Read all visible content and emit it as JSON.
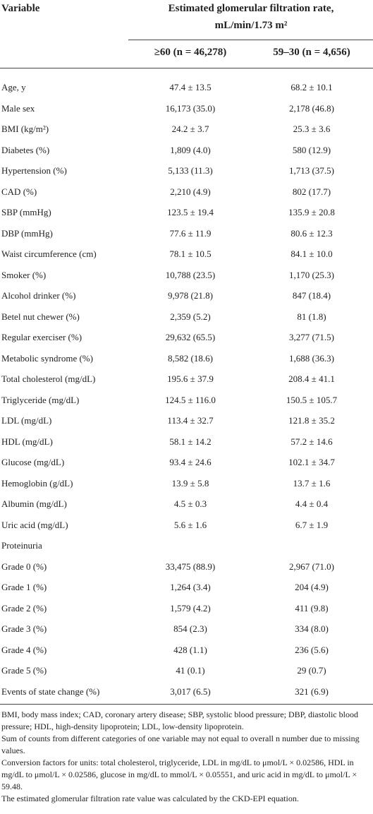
{
  "table": {
    "header": {
      "variable": "Variable",
      "group": [
        "Estimated glomerular filtration rate,",
        "mL/min/1.73 m²"
      ],
      "columns": [
        "≥60 (n = 46,278)",
        "59–30 (n = 4,656)"
      ]
    },
    "rows": [
      {
        "label": "Age, y",
        "values": [
          "47.4 ± 13.5",
          "68.2 ± 10.1"
        ]
      },
      {
        "label": "Male sex",
        "values": [
          "16,173 (35.0)",
          "2,178 (46.8)"
        ]
      },
      {
        "label": "BMI (kg/m²)",
        "values": [
          "24.2 ± 3.7",
          "25.3 ± 3.6"
        ]
      },
      {
        "label": "Diabetes (%)",
        "values": [
          "1,809 (4.0)",
          "580 (12.9)"
        ]
      },
      {
        "label": "Hypertension (%)",
        "values": [
          "5,133 (11.3)",
          "1,713 (37.5)"
        ]
      },
      {
        "label": "CAD (%)",
        "values": [
          "2,210 (4.9)",
          "802 (17.7)"
        ]
      },
      {
        "label": "SBP (mmHg)",
        "values": [
          "123.5 ± 19.4",
          "135.9 ± 20.8"
        ]
      },
      {
        "label": "DBP (mmHg)",
        "values": [
          "77.6 ± 11.9",
          "80.6 ± 12.3"
        ]
      },
      {
        "label": "Waist circumference (cm)",
        "values": [
          "78.1 ± 10.5",
          "84.1 ± 10.0"
        ]
      },
      {
        "label": "Smoker (%)",
        "values": [
          "10,788 (23.5)",
          "1,170 (25.3)"
        ]
      },
      {
        "label": "Alcohol drinker (%)",
        "values": [
          "9,978 (21.8)",
          "847 (18.4)"
        ]
      },
      {
        "label": "Betel nut chewer (%)",
        "values": [
          "2,359 (5.2)",
          "81 (1.8)"
        ]
      },
      {
        "label": "Regular exerciser (%)",
        "values": [
          "29,632 (65.5)",
          "3,277 (71.5)"
        ]
      },
      {
        "label": "Metabolic syndrome (%)",
        "values": [
          "8,582 (18.6)",
          "1,688 (36.3)"
        ]
      },
      {
        "label": "Total cholesterol (mg/dL)",
        "values": [
          "195.6 ± 37.9",
          "208.4 ± 41.1"
        ]
      },
      {
        "label": "Triglyceride (mg/dL)",
        "values": [
          "124.5 ± 116.0",
          "150.5 ± 105.7"
        ]
      },
      {
        "label": "LDL (mg/dL)",
        "values": [
          "113.4 ± 32.7",
          "121.8 ± 35.2"
        ]
      },
      {
        "label": "HDL (mg/dL)",
        "values": [
          "58.1 ± 14.2",
          "57.2 ± 14.6"
        ]
      },
      {
        "label": "Glucose (mg/dL)",
        "values": [
          "93.4 ± 24.6",
          "102.1 ± 34.7"
        ]
      },
      {
        "label": "Hemoglobin (g/dL)",
        "values": [
          "13.9 ± 5.8",
          "13.7 ± 1.6"
        ]
      },
      {
        "label": "Albumin (mg/dL)",
        "values": [
          "4.5 ± 0.3",
          "4.4 ± 0.4"
        ]
      },
      {
        "label": "Uric acid (mg/dL)",
        "values": [
          "5.6 ± 1.6",
          "6.7 ± 1.9"
        ]
      },
      {
        "label": "Proteinuria"
      },
      {
        "label": "Grade 0 (%)",
        "values": [
          "33,475 (88.9)",
          "2,967 (71.0)"
        ]
      },
      {
        "label": "Grade 1 (%)",
        "values": [
          "1,264 (3.4)",
          "204 (4.9)"
        ]
      },
      {
        "label": "Grade 2 (%)",
        "values": [
          "1,579 (4.2)",
          "411 (9.8)"
        ]
      },
      {
        "label": "Grade 3 (%)",
        "values": [
          "854 (2.3)",
          "334 (8.0)"
        ]
      },
      {
        "label": "Grade 4 (%)",
        "values": [
          "428 (1.1)",
          "236 (5.6)"
        ]
      },
      {
        "label": "Grade 5 (%)",
        "values": [
          "41 (0.1)",
          "29 (0.7)"
        ]
      },
      {
        "label": "Events of state change (%)",
        "values": [
          "3,017 (6.5)",
          "321 (6.9)"
        ]
      }
    ],
    "footnotes": [
      "BMI, body mass index; CAD, coronary artery disease; SBP, systolic blood pressure; DBP, diastolic blood pressure; HDL, high-density lipoprotein; LDL, low-density lipoprotein.",
      "Sum of counts from different categories of one variable may not equal to overall n number due to missing values.",
      "Conversion factors for units: total cholesterol, triglyceride, LDL in mg/dL to μmol/L × 0.02586, HDL in mg/dL to μmol/L × 0.02586, glucose in mg/dL to mmol/L × 0.05551, and uric acid in mg/dL to μmol/L × 59.48.",
      "The estimated glomerular filtration rate value was calculated by the CKD-EPI equation."
    ]
  }
}
